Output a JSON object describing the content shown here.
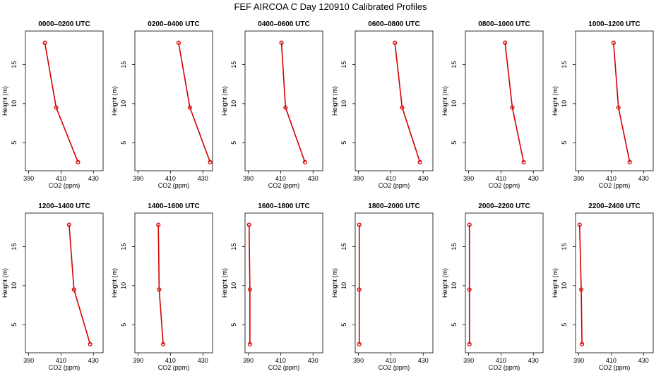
{
  "title": "FEF AIRCOA C  Day 120910  Calibrated Profiles",
  "colors": {
    "series": "#d40000",
    "frame": "#000000",
    "background": "#ffffff"
  },
  "chart_data": [
    {
      "type": "line",
      "title": "0000–0200 UTC",
      "xlabel": "CO2 (ppm)",
      "ylabel": "Height (m)",
      "xlim": [
        388,
        436
      ],
      "ylim": [
        1.4,
        19.3
      ],
      "xticks": [
        390,
        410,
        430
      ],
      "yticks": [
        5,
        10,
        15
      ],
      "x": [
        400.0,
        407.0,
        420.5
      ],
      "y": [
        17.8,
        9.5,
        2.5
      ]
    },
    {
      "type": "line",
      "title": "0200–0400 UTC",
      "xlabel": "CO2 (ppm)",
      "ylabel": "Height (m)",
      "xlim": [
        388,
        436
      ],
      "ylim": [
        1.4,
        19.3
      ],
      "xticks": [
        390,
        410,
        430
      ],
      "yticks": [
        5,
        10,
        15
      ],
      "x": [
        415.0,
        422.0,
        434.5
      ],
      "y": [
        17.8,
        9.5,
        2.5
      ]
    },
    {
      "type": "line",
      "title": "0400–0600 UTC",
      "xlabel": "CO2 (ppm)",
      "ylabel": "Height (m)",
      "xlim": [
        388,
        436
      ],
      "ylim": [
        1.4,
        19.3
      ],
      "xticks": [
        390,
        410,
        430
      ],
      "yticks": [
        5,
        10,
        15
      ],
      "x": [
        410.5,
        413.0,
        425.0
      ],
      "y": [
        17.8,
        9.5,
        2.5
      ]
    },
    {
      "type": "line",
      "title": "0600–0800 UTC",
      "xlabel": "CO2 (ppm)",
      "ylabel": "Height (m)",
      "xlim": [
        388,
        436
      ],
      "ylim": [
        1.4,
        19.3
      ],
      "xticks": [
        390,
        410,
        430
      ],
      "yticks": [
        5,
        10,
        15
      ],
      "x": [
        412.5,
        417.0,
        428.0
      ],
      "y": [
        17.8,
        9.5,
        2.5
      ]
    },
    {
      "type": "line",
      "title": "0800–1000 UTC",
      "xlabel": "CO2 (ppm)",
      "ylabel": "Height (m)",
      "xlim": [
        388,
        436
      ],
      "ylim": [
        1.4,
        19.3
      ],
      "xticks": [
        390,
        410,
        430
      ],
      "yticks": [
        5,
        10,
        15
      ],
      "x": [
        412.5,
        417.0,
        424.0
      ],
      "y": [
        17.8,
        9.5,
        2.5
      ]
    },
    {
      "type": "line",
      "title": "1000–1200 UTC",
      "xlabel": "CO2 (ppm)",
      "ylabel": "Height (m)",
      "xlim": [
        388,
        436
      ],
      "ylim": [
        1.4,
        19.3
      ],
      "xticks": [
        390,
        410,
        430
      ],
      "yticks": [
        5,
        10,
        15
      ],
      "x": [
        411.5,
        414.5,
        421.5
      ],
      "y": [
        17.8,
        9.5,
        2.5
      ]
    },
    {
      "type": "line",
      "title": "1200–1400 UTC",
      "xlabel": "CO2 (ppm)",
      "ylabel": "Height (m)",
      "xlim": [
        388,
        436
      ],
      "ylim": [
        1.4,
        19.3
      ],
      "xticks": [
        390,
        410,
        430
      ],
      "yticks": [
        5,
        10,
        15
      ],
      "x": [
        415.0,
        418.0,
        428.0
      ],
      "y": [
        17.8,
        9.5,
        2.5
      ]
    },
    {
      "type": "line",
      "title": "1400–1600 UTC",
      "xlabel": "CO2 (ppm)",
      "ylabel": "Height (m)",
      "xlim": [
        388,
        436
      ],
      "ylim": [
        1.4,
        19.3
      ],
      "xticks": [
        390,
        410,
        430
      ],
      "yticks": [
        5,
        10,
        15
      ],
      "x": [
        402.5,
        403.0,
        405.5
      ],
      "y": [
        17.8,
        9.5,
        2.5
      ]
    },
    {
      "type": "line",
      "title": "1600–1800 UTC",
      "xlabel": "CO2 (ppm)",
      "ylabel": "Height (m)",
      "xlim": [
        388,
        436
      ],
      "ylim": [
        1.4,
        19.3
      ],
      "xticks": [
        390,
        410,
        430
      ],
      "yticks": [
        5,
        10,
        15
      ],
      "x": [
        390.5,
        391.0,
        391.0
      ],
      "y": [
        17.8,
        9.5,
        2.5
      ]
    },
    {
      "type": "line",
      "title": "1800–2000 UTC",
      "xlabel": "CO2 (ppm)",
      "ylabel": "Height (m)",
      "xlim": [
        388,
        436
      ],
      "ylim": [
        1.4,
        19.3
      ],
      "xticks": [
        390,
        410,
        430
      ],
      "yticks": [
        5,
        10,
        15
      ],
      "x": [
        390.5,
        390.5,
        390.5
      ],
      "y": [
        17.8,
        9.5,
        2.5
      ]
    },
    {
      "type": "line",
      "title": "2000–2200 UTC",
      "xlabel": "CO2 (ppm)",
      "ylabel": "Height (m)",
      "xlim": [
        388,
        436
      ],
      "ylim": [
        1.4,
        19.3
      ],
      "xticks": [
        390,
        410,
        430
      ],
      "yticks": [
        5,
        10,
        15
      ],
      "x": [
        390.5,
        390.5,
        390.5
      ],
      "y": [
        17.8,
        9.5,
        2.5
      ]
    },
    {
      "type": "line",
      "title": "2200–2400 UTC",
      "xlabel": "CO2 (ppm)",
      "ylabel": "Height (m)",
      "xlim": [
        388,
        436
      ],
      "ylim": [
        1.4,
        19.3
      ],
      "xticks": [
        390,
        410,
        430
      ],
      "yticks": [
        5,
        10,
        15
      ],
      "x": [
        390.5,
        391.5,
        392.0
      ],
      "y": [
        17.8,
        9.5,
        2.5
      ]
    }
  ]
}
